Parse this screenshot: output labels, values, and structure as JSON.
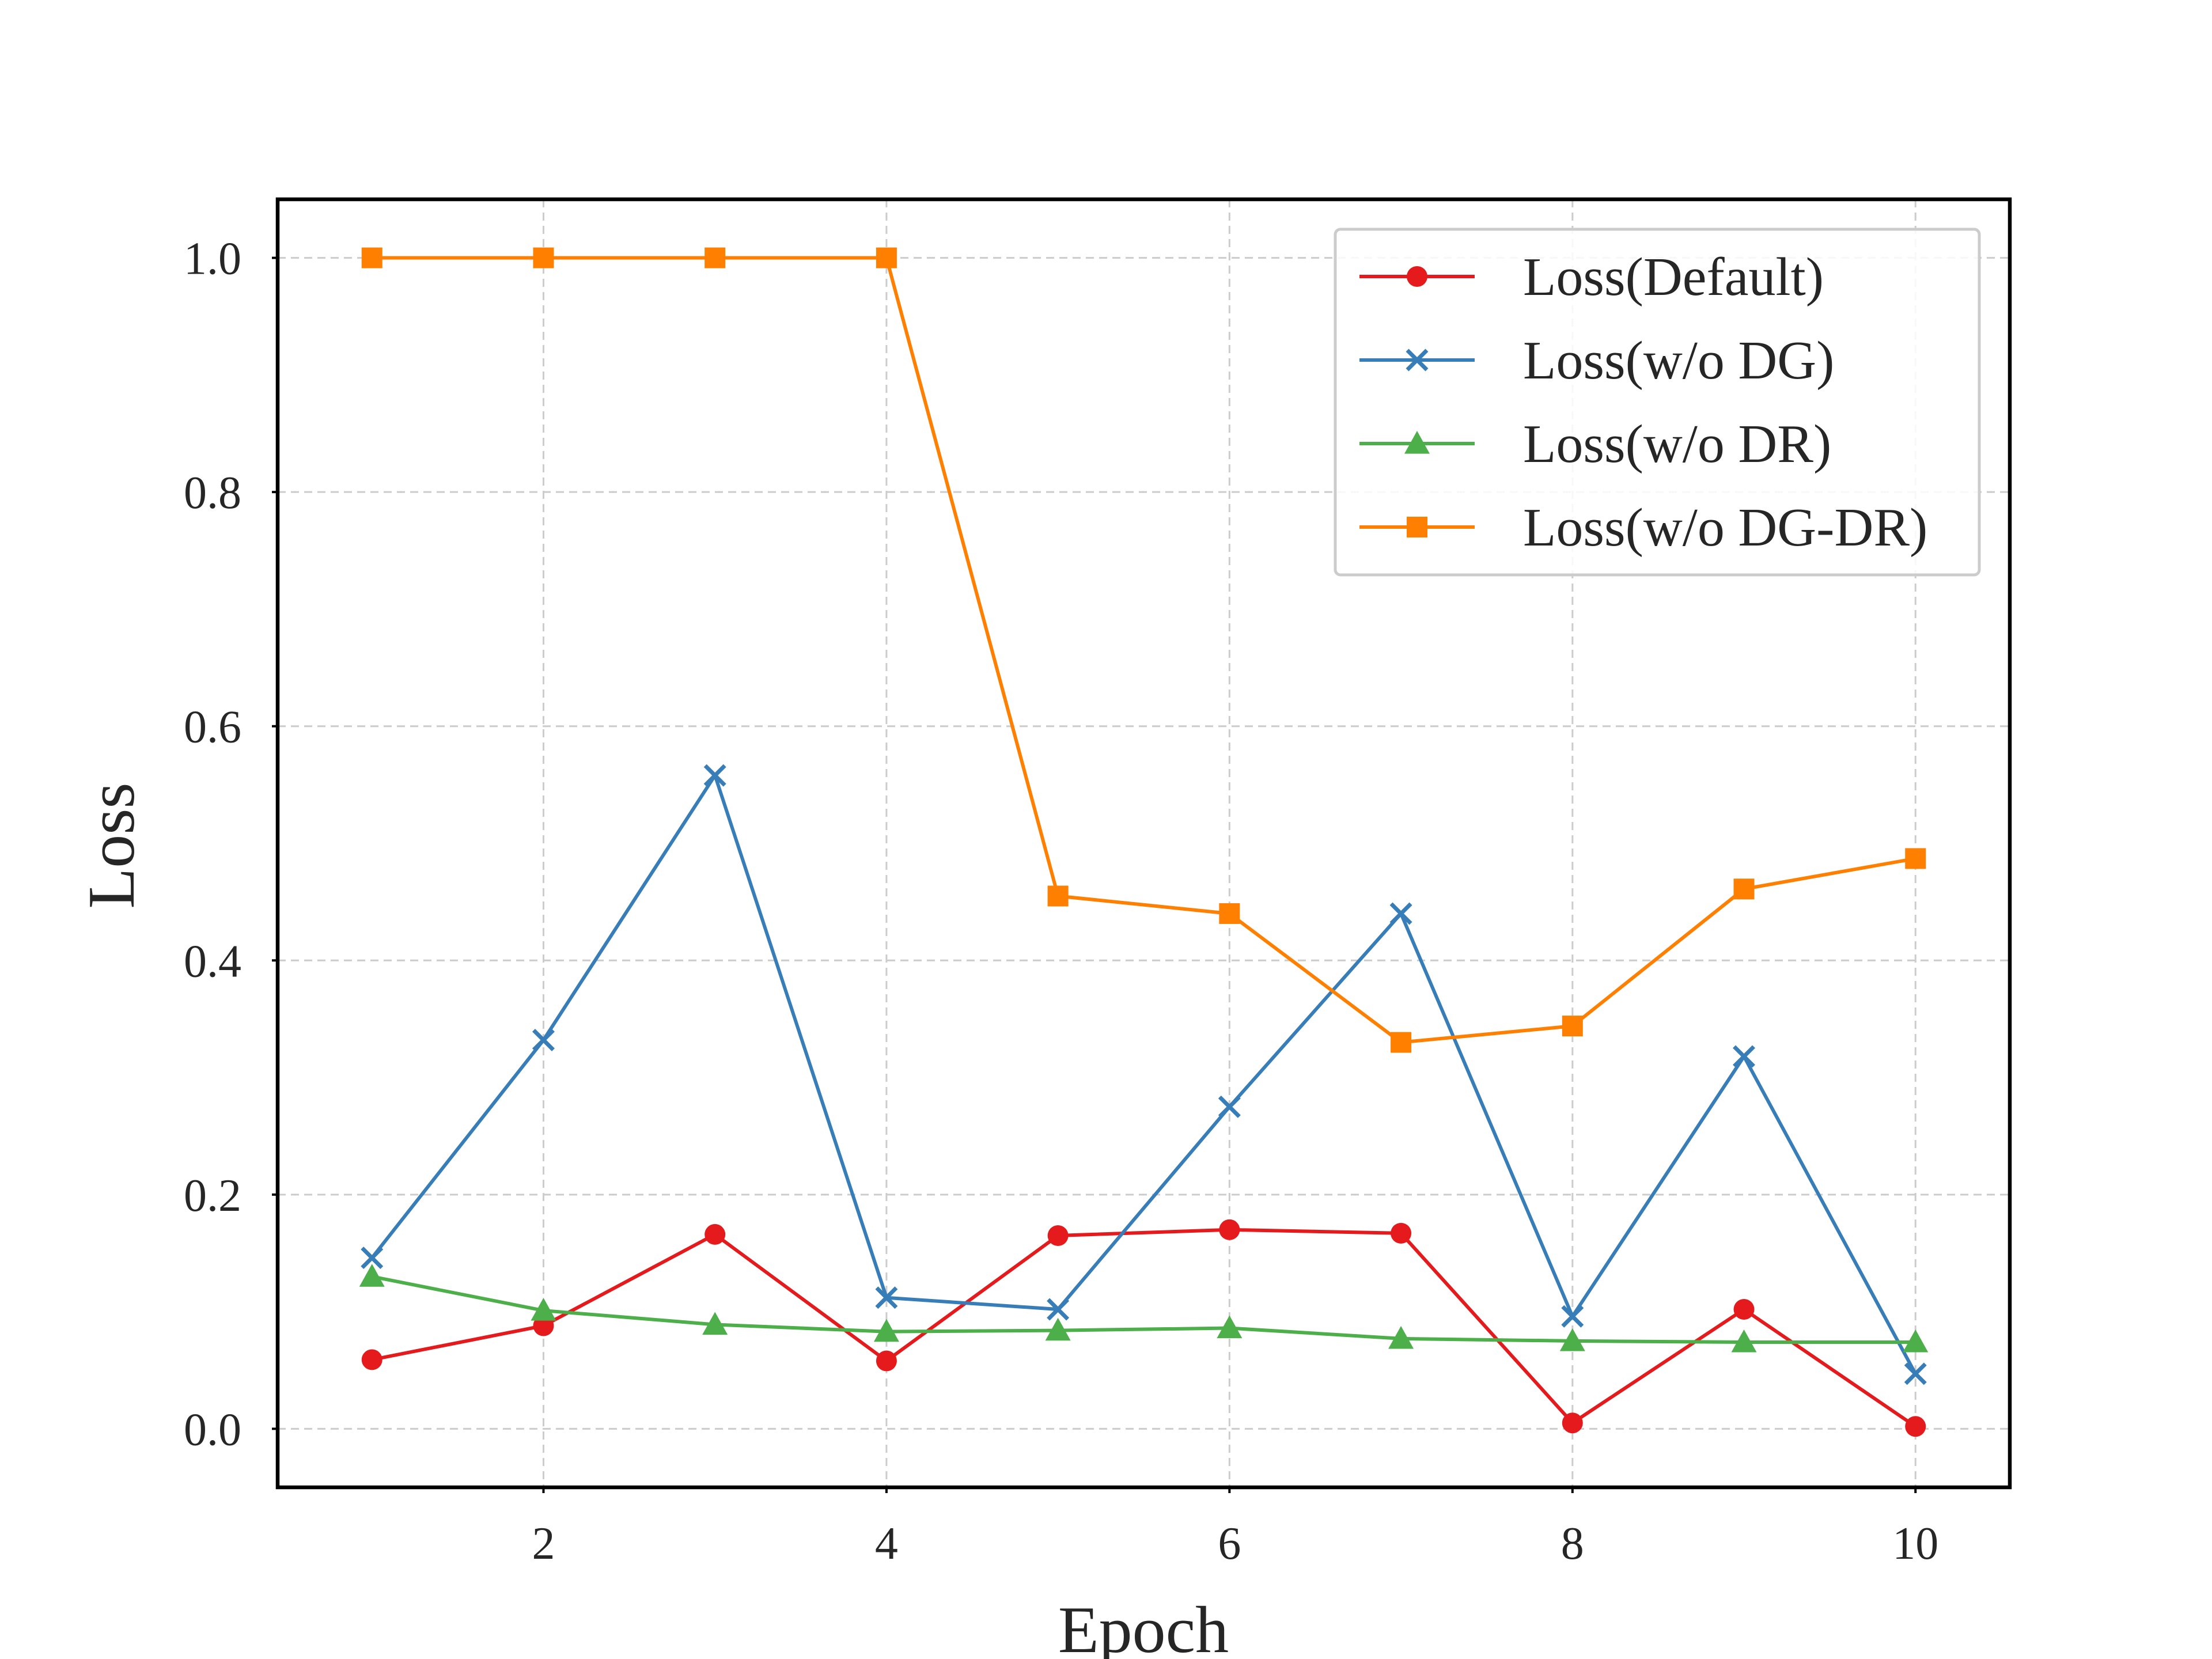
{
  "chart_data": {
    "type": "line",
    "title": "",
    "xlabel": "Epoch",
    "ylabel": "Loss",
    "xlim": [
      0.45,
      10.55
    ],
    "ylim": [
      -0.05,
      1.05
    ],
    "x_ticks": [
      2,
      4,
      6,
      8,
      10
    ],
    "x_tick_labels": [
      "2",
      "4",
      "6",
      "8",
      "10"
    ],
    "y_ticks": [
      0.0,
      0.2,
      0.4,
      0.6,
      0.8,
      1.0
    ],
    "y_tick_labels": [
      "0.0",
      "0.2",
      "0.4",
      "0.6",
      "0.8",
      "1.0"
    ],
    "grid": true,
    "legend_position": "top-right",
    "x": [
      1,
      2,
      3,
      4,
      5,
      6,
      7,
      8,
      9,
      10
    ],
    "series": [
      {
        "name": "Loss(Default)",
        "color": "#e41a1c",
        "marker": "circle",
        "values": [
          0.059,
          0.088,
          0.166,
          0.058,
          0.165,
          0.17,
          0.167,
          0.005,
          0.102,
          0.002
        ]
      },
      {
        "name": "Loss(w/o DG)",
        "color": "#377eb8",
        "marker": "x",
        "values": [
          0.146,
          0.332,
          0.558,
          0.112,
          0.102,
          0.275,
          0.44,
          0.096,
          0.318,
          0.047
        ]
      },
      {
        "name": "Loss(w/o DR)",
        "color": "#4daf4a",
        "marker": "triangle",
        "values": [
          0.13,
          0.101,
          0.089,
          0.083,
          0.084,
          0.086,
          0.077,
          0.075,
          0.074,
          0.074
        ]
      },
      {
        "name": "Loss(w/o DG-DR)",
        "color": "#ff7f00",
        "marker": "square",
        "values": [
          1.0,
          1.0,
          1.0,
          1.0,
          0.455,
          0.44,
          0.33,
          0.344,
          0.461,
          0.487
        ]
      }
    ]
  }
}
